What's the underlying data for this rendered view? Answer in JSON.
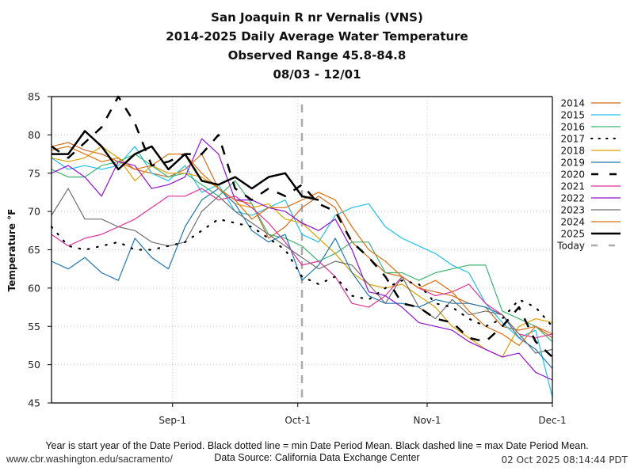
{
  "header": {
    "title_line1": "San Joaquin R nr Vernalis (VNS)",
    "title_line2": "2014-2025 Daily Average Water Temperature",
    "title_line3": "Observed Range 45.8-84.8",
    "title_line4": "08/03 - 12/01"
  },
  "footer": {
    "note": "Year is start year of the Date Period. Black dotted line = min Date Period Mean. Black dashed line = max Date Period Mean.",
    "url": "www.cbr.washington.edu/sacramento/",
    "source": "Data Source: California Data Exchange Center",
    "timestamp": "02 Oct 2025 08:14:44 PDT"
  },
  "chart_data": {
    "type": "line",
    "title": "San Joaquin R nr Vernalis (VNS) 2014-2025 Daily Average Water Temperature",
    "xlabel": "",
    "ylabel": "Temperature °F",
    "x_unit": "days since 08/03",
    "xlim": [
      0,
      120
    ],
    "ylim": [
      45,
      85
    ],
    "yticks": [
      45,
      50,
      55,
      60,
      65,
      70,
      75,
      80,
      85
    ],
    "xticks": [
      {
        "day": 29,
        "label": "Sep-1"
      },
      {
        "day": 59,
        "label": "Oct-1"
      },
      {
        "day": 90,
        "label": "Nov-1"
      },
      {
        "day": 120,
        "label": "Dec-1"
      }
    ],
    "grid": true,
    "legend_position": "right",
    "today_day": 60,
    "x": [
      0,
      4,
      8,
      12,
      16,
      20,
      24,
      28,
      32,
      36,
      40,
      44,
      48,
      52,
      56,
      60,
      64,
      68,
      72,
      76,
      80,
      84,
      88,
      92,
      96,
      100,
      104,
      108,
      112,
      116,
      120
    ],
    "series": [
      {
        "name": "2014",
        "color": "#d2691e",
        "style": "solid",
        "values": [
          78.5,
          79.0,
          78.0,
          77.5,
          76.5,
          75.5,
          75.0,
          74.5,
          75.5,
          77.5,
          73.0,
          71.5,
          71.0,
          66.5,
          68.0,
          70.5,
          72.0,
          70.5,
          66.0,
          64.0,
          62.0,
          61.5,
          60.0,
          59.5,
          59.0,
          58.0,
          57.5,
          55.0,
          54.5,
          55.0,
          53.5
        ]
      },
      {
        "name": "2015",
        "color": "#1ec0f0",
        "style": "solid",
        "values": [
          77.0,
          75.5,
          76.0,
          75.5,
          76.0,
          78.5,
          75.0,
          74.0,
          76.0,
          72.5,
          73.5,
          70.0,
          69.5,
          70.5,
          71.5,
          67.0,
          66.0,
          69.5,
          70.5,
          71.0,
          68.0,
          66.5,
          65.5,
          64.5,
          63.0,
          62.0,
          58.0,
          55.5,
          53.5,
          54.5,
          45.8
        ]
      },
      {
        "name": "2016",
        "color": "#3cb371",
        "style": "solid",
        "values": [
          75.5,
          74.5,
          74.5,
          76.0,
          76.5,
          77.5,
          76.0,
          74.5,
          75.0,
          73.5,
          72.0,
          74.0,
          71.0,
          67.0,
          66.5,
          65.5,
          63.5,
          64.5,
          66.0,
          66.0,
          62.0,
          62.0,
          61.0,
          62.0,
          62.5,
          63.0,
          63.0,
          57.0,
          56.0,
          55.0,
          53.0
        ]
      },
      {
        "name": "2017",
        "color": "#000000",
        "style": "dotted",
        "values": [
          68.0,
          65.5,
          65.0,
          65.5,
          66.0,
          65.0,
          65.0,
          65.5,
          66.0,
          67.5,
          69.0,
          68.5,
          68.0,
          66.5,
          65.0,
          61.5,
          60.5,
          61.5,
          59.0,
          58.5,
          60.0,
          61.0,
          60.5,
          58.0,
          57.5,
          56.0,
          55.0,
          56.0,
          58.5,
          57.5,
          55.0
        ]
      },
      {
        "name": "2018",
        "color": "#e0a000",
        "style": "solid",
        "values": [
          77.0,
          76.5,
          77.0,
          78.5,
          77.0,
          74.0,
          76.0,
          75.0,
          75.0,
          74.5,
          73.0,
          71.0,
          70.5,
          71.0,
          69.0,
          68.5,
          66.5,
          64.5,
          62.0,
          60.5,
          60.0,
          60.5,
          59.0,
          57.5,
          55.0,
          53.5,
          52.0,
          51.0,
          55.0,
          56.0,
          55.5
        ]
      },
      {
        "name": "2019",
        "color": "#1f77b4",
        "style": "solid",
        "values": [
          63.5,
          62.5,
          64.0,
          62.0,
          61.0,
          66.5,
          64.0,
          62.5,
          68.0,
          71.5,
          73.0,
          71.0,
          67.5,
          66.0,
          67.0,
          61.0,
          63.0,
          66.5,
          62.0,
          59.0,
          58.0,
          58.0,
          57.5,
          58.5,
          58.0,
          58.0,
          57.5,
          56.5,
          53.5,
          52.0,
          49.5
        ]
      },
      {
        "name": "2020",
        "color": "#000000",
        "style": "dashed",
        "values": [
          78.5,
          77.0,
          79.0,
          81.0,
          85.0,
          81.5,
          76.0,
          76.5,
          77.5,
          77.5,
          80.0,
          73.0,
          71.5,
          73.0,
          72.0,
          73.5,
          71.0,
          70.0,
          66.0,
          64.0,
          61.5,
          58.0,
          57.5,
          56.0,
          55.5,
          53.5,
          53.0,
          55.0,
          57.5,
          53.0,
          51.0
        ]
      },
      {
        "name": "2021",
        "color": "#e0309a",
        "style": "solid",
        "values": [
          67.0,
          65.5,
          66.5,
          67.0,
          68.0,
          69.0,
          70.5,
          72.0,
          72.0,
          73.0,
          71.5,
          72.0,
          70.5,
          68.5,
          66.0,
          63.0,
          63.5,
          61.5,
          58.0,
          57.5,
          59.0,
          61.5,
          60.0,
          59.0,
          59.5,
          60.5,
          58.0,
          56.5,
          54.0,
          53.5,
          54.0
        ]
      },
      {
        "name": "2022",
        "color": "#9010d0",
        "style": "solid",
        "values": [
          75.0,
          76.0,
          74.5,
          72.0,
          76.5,
          76.0,
          73.0,
          73.5,
          74.5,
          79.5,
          77.5,
          71.5,
          71.5,
          70.5,
          70.0,
          68.5,
          67.5,
          69.0,
          65.0,
          59.5,
          59.0,
          57.5,
          55.5,
          55.0,
          54.5,
          53.0,
          52.0,
          51.0,
          51.5,
          49.0,
          48.0
        ]
      },
      {
        "name": "2023",
        "color": "#6e6e6e",
        "style": "solid",
        "values": [
          69.5,
          73.0,
          69.0,
          69.0,
          68.0,
          67.5,
          66.0,
          65.5,
          66.0,
          70.0,
          72.0,
          70.0,
          68.5,
          67.0,
          65.5,
          64.0,
          62.5,
          63.5,
          63.0,
          60.5,
          58.0,
          61.5,
          57.5,
          56.0,
          58.5,
          56.5,
          57.0,
          56.5,
          54.0,
          51.5,
          52.0
        ]
      },
      {
        "name": "2024",
        "color": "#e07010",
        "style": "solid",
        "values": [
          78.0,
          78.5,
          77.5,
          76.5,
          77.0,
          75.5,
          76.0,
          77.5,
          77.5,
          75.0,
          73.0,
          71.5,
          69.0,
          70.5,
          70.5,
          71.5,
          72.5,
          71.5,
          68.0,
          65.0,
          63.5,
          61.5,
          60.0,
          61.0,
          59.5,
          57.0,
          55.0,
          54.0,
          52.5,
          55.0,
          54.0
        ]
      },
      {
        "name": "2025",
        "color": "#000000",
        "style": "solid-thick",
        "values": [
          77.5,
          77.5,
          80.5,
          78.5,
          75.5,
          77.5,
          78.5,
          75.5,
          77.5,
          74.0,
          73.5,
          74.5,
          73.0,
          74.5,
          75.0,
          72.0,
          71.5
        ]
      },
      {
        "name": "Today",
        "color": "#aaaaaa",
        "style": "dashed-vertical",
        "values": []
      }
    ]
  }
}
